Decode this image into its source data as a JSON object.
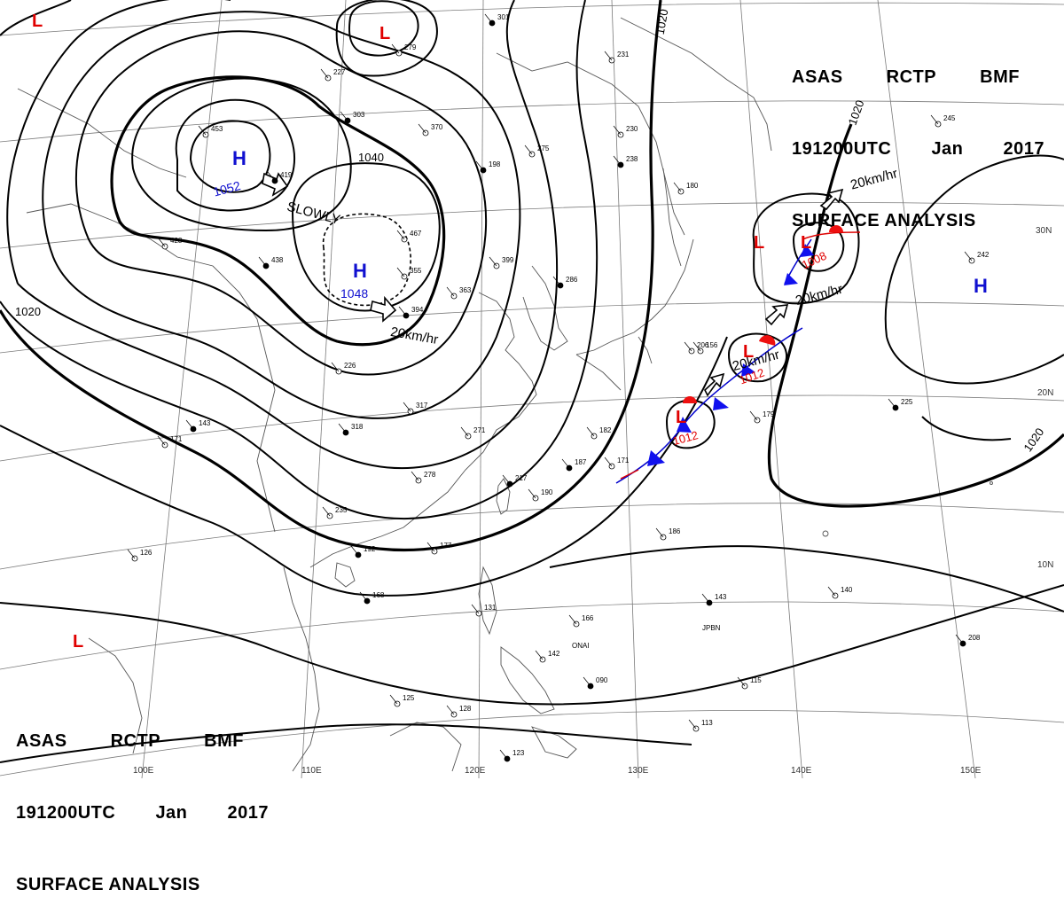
{
  "header_top": {
    "line1": [
      "ASAS",
      "RCTP",
      "BMF"
    ],
    "line2": [
      "191200UTC",
      "Jan",
      "2017"
    ],
    "line3": "SURFACE ANALYSIS"
  },
  "header_bottom": {
    "line1": [
      "ASAS",
      "RCTP",
      "BMF"
    ],
    "line2": [
      "191200UTC",
      "Jan",
      "2017"
    ],
    "line3": "SURFACE ANALYSIS"
  },
  "colors": {
    "high": "#1010d0",
    "low": "#e00000",
    "isobar": "#000000",
    "grid": "#888888"
  },
  "latitude_labels": [
    "30N",
    "20N",
    "10N"
  ],
  "longitude_labels": [
    "100E",
    "110E",
    "120E",
    "130E",
    "140E",
    "150E"
  ],
  "isobar_labels": [
    "1020",
    "1040",
    "1020",
    "1020",
    "1020"
  ],
  "pressure_systems": [
    {
      "type": "H",
      "value": "1052",
      "icon": "high-pressure-symbol"
    },
    {
      "type": "H",
      "value": "1048",
      "icon": "high-pressure-symbol"
    },
    {
      "type": "H",
      "value": "",
      "icon": "high-pressure-symbol"
    },
    {
      "type": "L",
      "value": "1008",
      "icon": "low-pressure-symbol"
    },
    {
      "type": "L",
      "value": "1012",
      "icon": "low-pressure-symbol"
    },
    {
      "type": "L",
      "value": "1012",
      "icon": "low-pressure-symbol"
    },
    {
      "type": "L",
      "value": "",
      "icon": "low-pressure-symbol"
    },
    {
      "type": "L",
      "value": "",
      "icon": "low-pressure-symbol"
    },
    {
      "type": "L",
      "value": "",
      "icon": "low-pressure-symbol"
    },
    {
      "type": "L",
      "value": "",
      "icon": "low-pressure-symbol"
    }
  ],
  "movement_labels": [
    "SLOWLY",
    "20km/hr",
    "20km/hr",
    "20km/hr",
    "20km/hr"
  ],
  "station_samples": [
    "301",
    "279",
    "227",
    "303",
    "370",
    "231",
    "198",
    "275",
    "230",
    "238",
    "180",
    "245",
    "419",
    "453",
    "428",
    "438",
    "467",
    "355",
    "394",
    "363",
    "399",
    "286",
    "226",
    "317",
    "318",
    "271",
    "278",
    "217",
    "190",
    "182",
    "187",
    "171",
    "179",
    "225",
    "242",
    "235",
    "192",
    "177",
    "186",
    "168",
    "131",
    "166",
    "143",
    "140",
    "142",
    "090",
    "125",
    "128",
    "123",
    "113",
    "115",
    "208",
    "126",
    "171",
    "143",
    "206",
    "156",
    "158"
  ],
  "station_ids": [
    "JPBN",
    "ONAI"
  ]
}
